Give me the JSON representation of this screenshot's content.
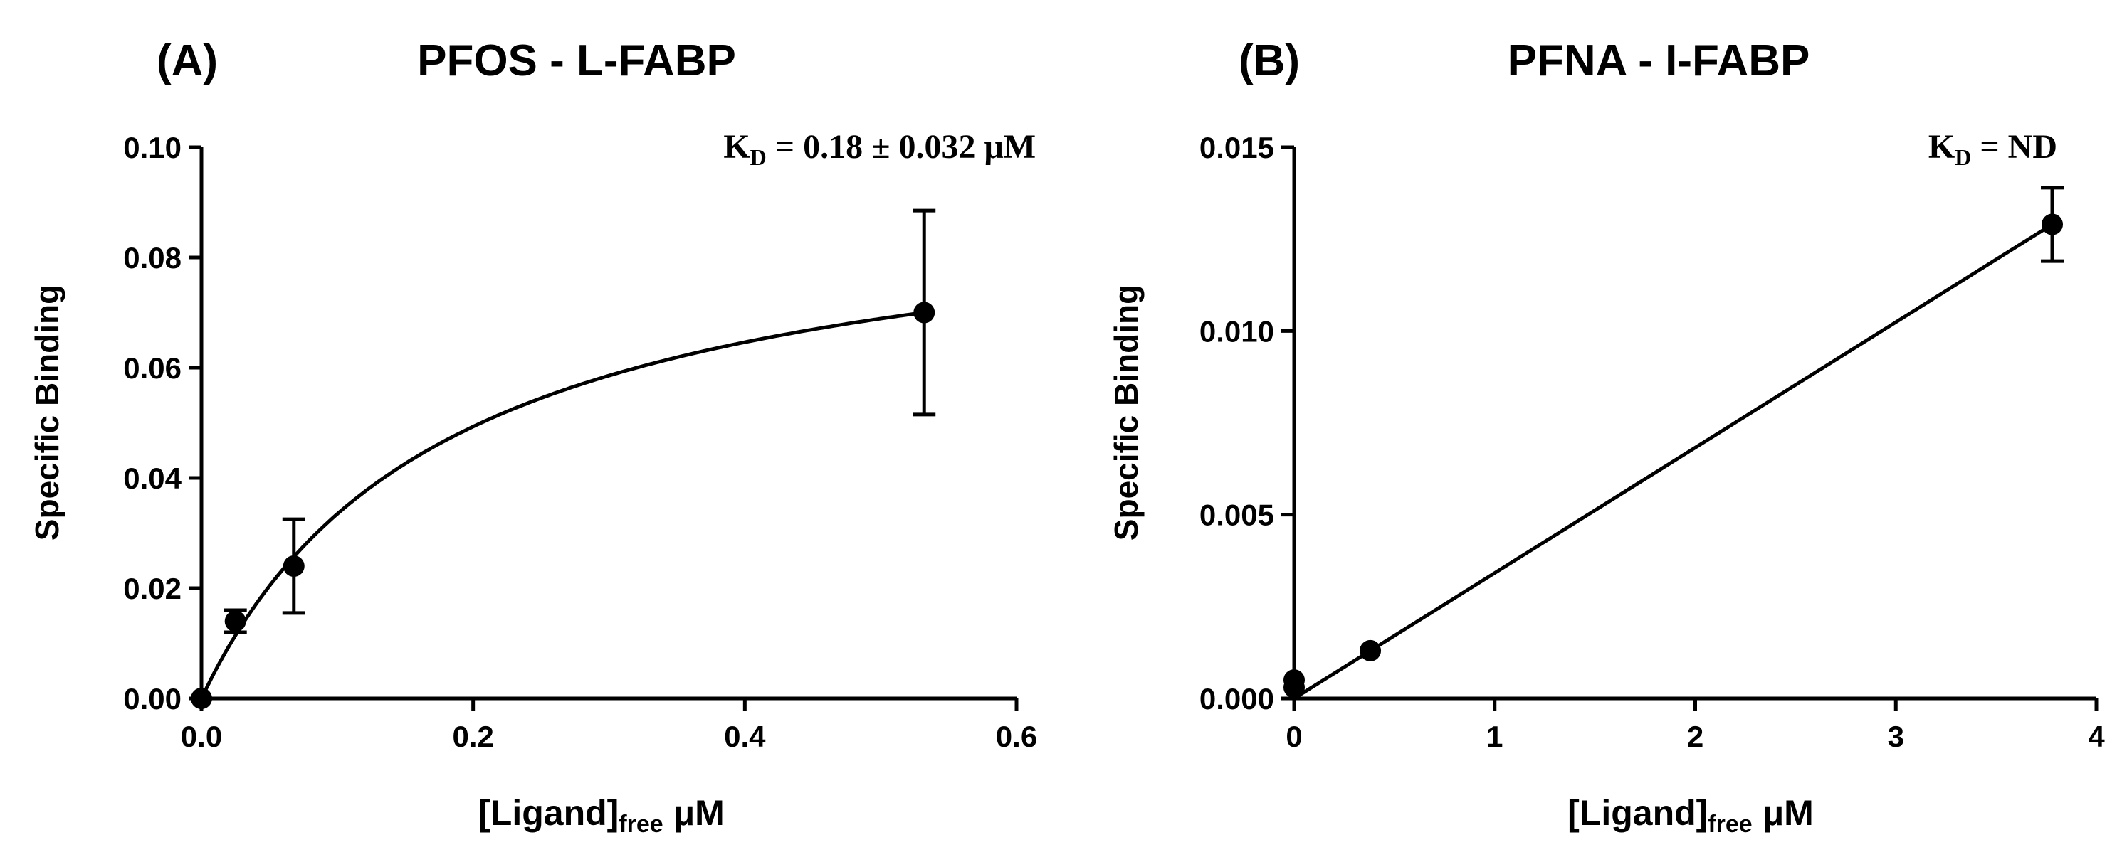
{
  "chart_data": [
    {
      "type": "scatter",
      "panel_label": "(A)",
      "title": "PFOS - L-FABP",
      "xlabel_main": "[Ligand]",
      "xlabel_sub": "free",
      "xlabel_unit": " μM",
      "ylabel": "Specific Binding",
      "annotation_k": "K",
      "annotation_sub": "D",
      "annotation_value": " =  0.18 ± 0.032 μM",
      "xlim": [
        0,
        0.6
      ],
      "ylim": [
        0,
        0.1
      ],
      "xticks": [
        0.0,
        0.2,
        0.4,
        0.6
      ],
      "xtick_labels": [
        "0.0",
        "0.2",
        "0.4",
        "0.6"
      ],
      "yticks": [
        0.0,
        0.02,
        0.04,
        0.06,
        0.08,
        0.1
      ],
      "ytick_labels": [
        "0.00",
        "0.02",
        "0.04",
        "0.06",
        "0.08",
        "0.10"
      ],
      "points": [
        {
          "x": 0.0,
          "y": 0.0,
          "err": 0.0
        },
        {
          "x": 0.025,
          "y": 0.014,
          "err": 0.002
        },
        {
          "x": 0.068,
          "y": 0.024,
          "err": 0.0085
        },
        {
          "x": 0.532,
          "y": 0.07,
          "err": 0.0185
        }
      ],
      "fit": {
        "model": "one-site",
        "Bmax": 0.0937,
        "Kd": 0.18
      }
    },
    {
      "type": "scatter",
      "panel_label": "(B)",
      "title": "PFNA - I-FABP",
      "xlabel_main": "[Ligand]",
      "xlabel_sub": "free",
      "xlabel_unit": " μM",
      "ylabel": "Specific Binding",
      "annotation_k": "K",
      "annotation_sub": "D",
      "annotation_value": " = ND",
      "xlim": [
        0,
        4
      ],
      "ylim": [
        0,
        0.015
      ],
      "xticks": [
        0,
        1,
        2,
        3,
        4
      ],
      "xtick_labels": [
        "0",
        "1",
        "2",
        "3",
        "4"
      ],
      "yticks": [
        0.0,
        0.005,
        0.01,
        0.015
      ],
      "ytick_labels": [
        "0.000",
        "0.005",
        "0.010",
        "0.015"
      ],
      "points": [
        {
          "x": 0.0,
          "y": 0.0005,
          "err": 0.0
        },
        {
          "x": 0.0,
          "y": 0.0003,
          "err": 0.0
        },
        {
          "x": 0.38,
          "y": 0.0013,
          "err": 0.0
        },
        {
          "x": 3.78,
          "y": 0.0129,
          "err": 0.001
        }
      ],
      "fit": {
        "model": "linear",
        "x": [
          0,
          3.78
        ],
        "y": [
          0,
          0.0129
        ]
      }
    }
  ]
}
